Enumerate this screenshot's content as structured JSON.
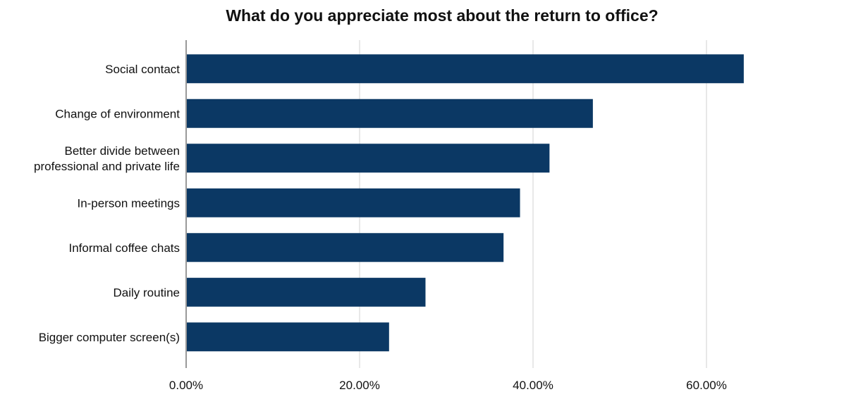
{
  "chart_data": {
    "type": "bar",
    "orientation": "horizontal",
    "title": "What do you appreciate most about the return to office?",
    "xlabel": "",
    "ylabel": "",
    "categories": [
      [
        "Social contact"
      ],
      [
        "Change of environment"
      ],
      [
        "Better divide between",
        "professional and private life"
      ],
      [
        "In-person meetings"
      ],
      [
        "Informal coffee chats"
      ],
      [
        "Daily routine"
      ],
      [
        "Bigger computer screen(s)"
      ]
    ],
    "values": [
      64.3,
      46.9,
      41.9,
      38.5,
      36.6,
      27.6,
      23.4
    ],
    "xlim": [
      0,
      75
    ],
    "xticks": [
      0,
      20,
      40,
      60
    ],
    "xtick_labels": [
      "0.00%",
      "20.00%",
      "40.00%",
      "60.00%"
    ],
    "grid": "vertical",
    "bar_color": "#0b3864",
    "legend": "none"
  }
}
